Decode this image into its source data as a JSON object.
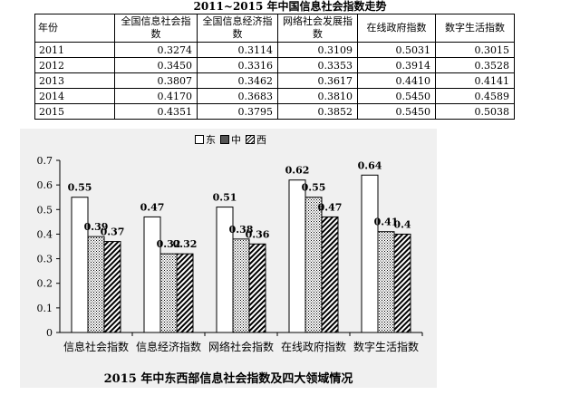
{
  "table": {
    "title": "2011~2015 年中国信息社会指数走势",
    "headers": [
      "年份",
      "全国信息社会指数",
      "全国信息经济指数",
      "网络社会发展指数",
      "在线政府指数",
      "数字生活指数"
    ],
    "rows": [
      [
        "2011",
        "0.3274",
        "0.3114",
        "0.3109",
        "0.5031",
        "0.3015"
      ],
      [
        "2012",
        "0.3450",
        "0.3316",
        "0.3353",
        "0.3914",
        "0.3528"
      ],
      [
        "2013",
        "0.3807",
        "0.3462",
        "0.3617",
        "0.4410",
        "0.4141"
      ],
      [
        "2014",
        "0.4170",
        "0.3683",
        "0.3810",
        "0.5450",
        "0.4589"
      ],
      [
        "2015",
        "0.4351",
        "0.3795",
        "0.3852",
        "0.5450",
        "0.5038"
      ]
    ]
  },
  "chart_data": {
    "type": "bar",
    "title": "2015 年中东西部信息社会指数及四大领域情况",
    "categories": [
      "信息社会指数",
      "信息经济指数",
      "网络社会指数",
      "在线政府指数",
      "数字生活指数"
    ],
    "series": [
      {
        "name": "东",
        "values": [
          0.55,
          0.47,
          0.51,
          0.62,
          0.64
        ],
        "labels": [
          "0.55",
          "0.47",
          "0.51",
          "0.62",
          "0.64"
        ]
      },
      {
        "name": "中",
        "values": [
          0.39,
          0.32,
          0.38,
          0.55,
          0.41
        ],
        "labels": [
          "0.39",
          "0.32",
          "0.38",
          "0.55",
          "0.41"
        ]
      },
      {
        "name": "西",
        "values": [
          0.37,
          0.32,
          0.36,
          0.47,
          0.4
        ],
        "labels": [
          "0.37",
          "0.32",
          "0.36",
          "0.47",
          "0.4"
        ]
      }
    ],
    "yticks": [
      "0",
      "0.1",
      "0.2",
      "0.3",
      "0.4",
      "0.5",
      "0.6",
      "0.7"
    ],
    "ylim": [
      0,
      0.7
    ],
    "legend_position": "top-center",
    "grid": false
  }
}
